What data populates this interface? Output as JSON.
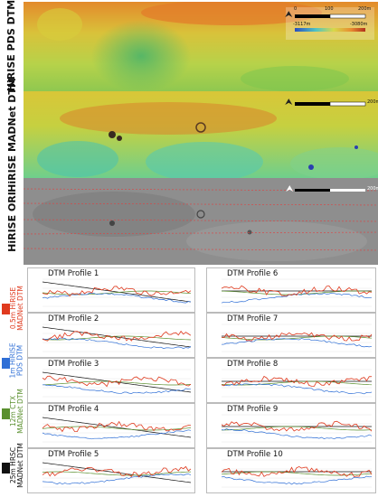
{
  "panels": {
    "pds": {
      "label": "HiRISE PDS DTM",
      "scale_start": "0",
      "scale_mid": "100",
      "scale_end": "200m",
      "ramp_min": "-3117m",
      "ramp_max": "-3080m"
    },
    "madnet": {
      "label": "HiRISE MADNet DTM",
      "scale_end": "200m"
    },
    "ori": {
      "label": "HiRISE ORI",
      "scale_end": "200m"
    }
  },
  "legend": [
    {
      "line1": "0.5m HiRISE",
      "line2": "MADNet DTM",
      "color": "#e03a1e"
    },
    {
      "line1": "1m HiRISE",
      "line2": "PDS DTM",
      "color": "#2f6fd6"
    },
    {
      "line1": "12m CTX",
      "line2": "MADNet DTM",
      "color": "#5a8f2e"
    },
    {
      "line1": "25m HRSC",
      "line2": "MADNet DTM",
      "color": "#111111"
    }
  ],
  "profiles": [
    {
      "title": "DTM Profile 1"
    },
    {
      "title": "DTM Profile 2"
    },
    {
      "title": "DTM Profile 3"
    },
    {
      "title": "DTM Profile 4"
    },
    {
      "title": "DTM Profile 5"
    },
    {
      "title": "DTM Profile 6"
    },
    {
      "title": "DTM Profile 7"
    },
    {
      "title": "DTM Profile 8"
    },
    {
      "title": "DTM Profile 9"
    },
    {
      "title": "DTM Profile 10"
    }
  ]
}
